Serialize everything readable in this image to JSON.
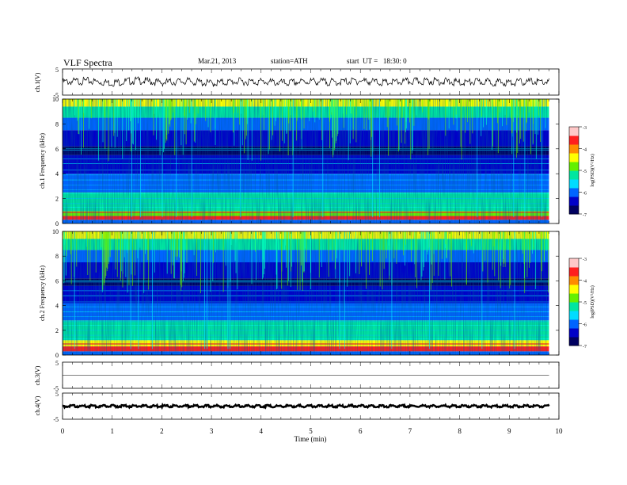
{
  "header": {
    "title": "VLF  Spectra",
    "date": "Mar.21, 2013",
    "station": "station=ATH",
    "start": "start  UT =   18:30: 0"
  },
  "colorbar": {
    "label": "log(PSD)(V²/Hz)",
    "ticks": [
      "-3",
      "-4",
      "-5",
      "-6",
      "-7"
    ],
    "colors": [
      "#000060",
      "#0000c8",
      "#0064ff",
      "#00dcff",
      "#00e6a0",
      "#64f000",
      "#ffff00",
      "#ff8c00",
      "#ff1e1e",
      "#ffc8c8"
    ]
  },
  "chart_data": [
    {
      "type": "line",
      "name": "ch1-waveform",
      "title": "",
      "xlabel": "",
      "ylabel": "ch.1(V)",
      "xlim": [
        0,
        10
      ],
      "ylim": [
        -5,
        5
      ],
      "yticks": [
        "5",
        "-5"
      ],
      "x": [
        0,
        0.5,
        1.0,
        1.5,
        2.0,
        2.5,
        3.0,
        3.5,
        4.0,
        4.5,
        5.0,
        5.5,
        6.0,
        6.5,
        7.0,
        7.5,
        8.0,
        8.5,
        9.0,
        9.5,
        9.8
      ],
      "y": [
        0,
        0.4,
        -0.3,
        0.6,
        -0.2,
        0.3,
        -0.5,
        0.2,
        0.1,
        -0.4,
        0.3,
        -0.1,
        0.5,
        -0.3,
        0.2,
        0.4,
        -0.2,
        0.1,
        -0.3,
        0.2,
        0
      ],
      "envelope": 1.5
    },
    {
      "type": "heatmap",
      "name": "ch1-spectrogram",
      "title": "",
      "xlabel": "",
      "ylabel": "ch.1 Frequency (kHz)",
      "xlim": [
        0,
        10
      ],
      "ylim": [
        0,
        10
      ],
      "yticks": [
        "0",
        "2",
        "4",
        "6",
        "8",
        "10"
      ],
      "data_end_min": 9.8,
      "z_range": [
        -7,
        -3
      ],
      "bands": [
        {
          "f0": 0.0,
          "f1": 0.3,
          "z": -6.0
        },
        {
          "f0": 0.3,
          "f1": 0.6,
          "z": -3.6
        },
        {
          "f0": 0.6,
          "f1": 1.0,
          "z": -4.7
        },
        {
          "f0": 1.0,
          "f1": 2.5,
          "z": -5.3
        },
        {
          "f0": 2.5,
          "f1": 4.0,
          "z": -5.9
        },
        {
          "f0": 4.0,
          "f1": 5.5,
          "z": -6.5
        },
        {
          "f0": 5.5,
          "f1": 6.2,
          "z": -6.9
        },
        {
          "f0": 6.2,
          "f1": 7.5,
          "z": -6.6
        },
        {
          "f0": 7.5,
          "f1": 8.5,
          "z": -5.9
        },
        {
          "f0": 8.5,
          "f1": 9.4,
          "z": -5.1
        },
        {
          "f0": 9.4,
          "f1": 10.0,
          "z": -4.5
        }
      ]
    },
    {
      "type": "heatmap",
      "name": "ch2-spectrogram",
      "title": "",
      "xlabel": "",
      "ylabel": "ch.2 Frequency (kHz)",
      "xlim": [
        0,
        10
      ],
      "ylim": [
        0,
        10
      ],
      "yticks": [
        "0",
        "2",
        "4",
        "6",
        "8",
        "10"
      ],
      "data_end_min": 9.8,
      "z_range": [
        -7,
        -3
      ],
      "bands": [
        {
          "f0": 0.0,
          "f1": 0.3,
          "z": -6.0
        },
        {
          "f0": 0.3,
          "f1": 0.7,
          "z": -3.7
        },
        {
          "f0": 0.7,
          "f1": 1.2,
          "z": -4.6
        },
        {
          "f0": 1.2,
          "f1": 2.8,
          "z": -5.2
        },
        {
          "f0": 2.8,
          "f1": 4.2,
          "z": -5.9
        },
        {
          "f0": 4.2,
          "f1": 5.6,
          "z": -6.4
        },
        {
          "f0": 5.6,
          "f1": 6.2,
          "z": -6.9
        },
        {
          "f0": 6.2,
          "f1": 7.5,
          "z": -6.6
        },
        {
          "f0": 7.5,
          "f1": 8.5,
          "z": -5.9
        },
        {
          "f0": 8.5,
          "f1": 9.4,
          "z": -5.1
        },
        {
          "f0": 9.4,
          "f1": 10.0,
          "z": -4.5
        }
      ]
    },
    {
      "type": "line",
      "name": "ch3-waveform",
      "title": "",
      "xlabel": "",
      "ylabel": "ch.3(V)",
      "xlim": [
        0,
        10
      ],
      "ylim": [
        -5,
        5
      ],
      "yticks": [
        "5",
        "-5"
      ],
      "x": [
        0,
        9.8
      ],
      "y": [
        0,
        0
      ],
      "envelope": 0
    },
    {
      "type": "line",
      "name": "ch4-waveform",
      "title": "",
      "xlabel": "Time  (min)",
      "ylabel": "ch.4(V)",
      "xlim": [
        0,
        10
      ],
      "ylim": [
        -5,
        5
      ],
      "yticks": [
        "5",
        "-5"
      ],
      "xticks": [
        "0",
        "1",
        "2",
        "3",
        "4",
        "5",
        "6",
        "7",
        "8",
        "9",
        "10"
      ],
      "x": [
        0,
        9.8
      ],
      "y": [
        0,
        0
      ],
      "envelope": 0.5
    }
  ]
}
